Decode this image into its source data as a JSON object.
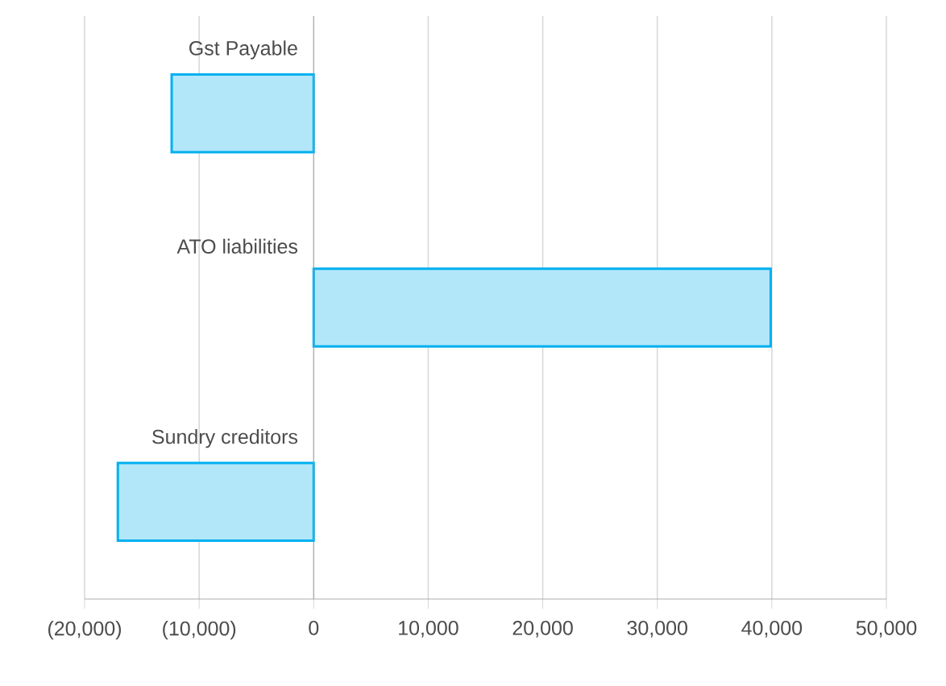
{
  "chart_data": {
    "type": "bar",
    "orientation": "horizontal",
    "categories": [
      "Gst Payable",
      "ATO liabilities",
      "Sundry creditors"
    ],
    "values": [
      -12400,
      39900,
      -17100
    ],
    "color": "#00b0f0",
    "xlim": [
      -20000,
      50000
    ],
    "xticks": [
      {
        "value": -20000,
        "label": "(20,000)"
      },
      {
        "value": -10000,
        "label": "(10,000)"
      },
      0,
      {
        "value": 10000,
        "label": "10,000"
      },
      {
        "value": 20000,
        "label": "20,000"
      },
      {
        "value": 30000,
        "label": "30,000"
      },
      {
        "value": 40000,
        "label": "40,000"
      },
      {
        "value": 50000,
        "label": "50,000"
      }
    ],
    "grid": "x"
  }
}
